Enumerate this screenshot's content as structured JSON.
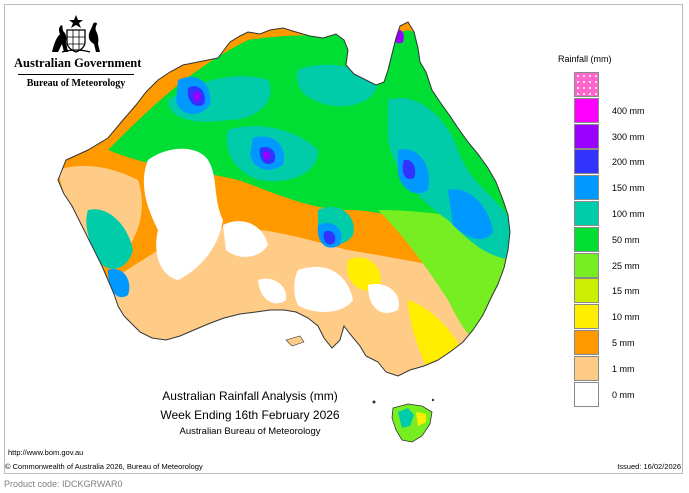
{
  "header": {
    "government": "Australian Government",
    "agency": "Bureau of Meteorology"
  },
  "legend": {
    "title": "Rainfall (mm)",
    "items": [
      {
        "label": "",
        "color": "#ff66cc"
      },
      {
        "label": "400 mm",
        "color": "#ff00ff"
      },
      {
        "label": "300 mm",
        "color": "#9900ff"
      },
      {
        "label": "200 mm",
        "color": "#3333ff"
      },
      {
        "label": "150 mm",
        "color": "#0099ff"
      },
      {
        "label": "100 mm",
        "color": "#00ccaa"
      },
      {
        "label": "50 mm",
        "color": "#00dd33"
      },
      {
        "label": "25 mm",
        "color": "#77ee22"
      },
      {
        "label": "15 mm",
        "color": "#ccee00"
      },
      {
        "label": "10 mm",
        "color": "#ffee00"
      },
      {
        "label": "5 mm",
        "color": "#ff9900"
      },
      {
        "label": "1 mm",
        "color": "#ffcc88"
      },
      {
        "label": "0 mm",
        "color": "#ffffff"
      }
    ]
  },
  "caption": {
    "line1": "Australian Rainfall Analysis (mm)",
    "line2": "Week Ending 16th February 2026",
    "line3": "Australian Bureau of Meteorology"
  },
  "footer": {
    "url": "http://www.bom.gov.au",
    "copyright": "© Commonwealth of Australia 2026, Bureau of Meteorology",
    "issued": "Issued: 16/02/2026",
    "product_code": "Product code: IDCKGRWAR0"
  }
}
